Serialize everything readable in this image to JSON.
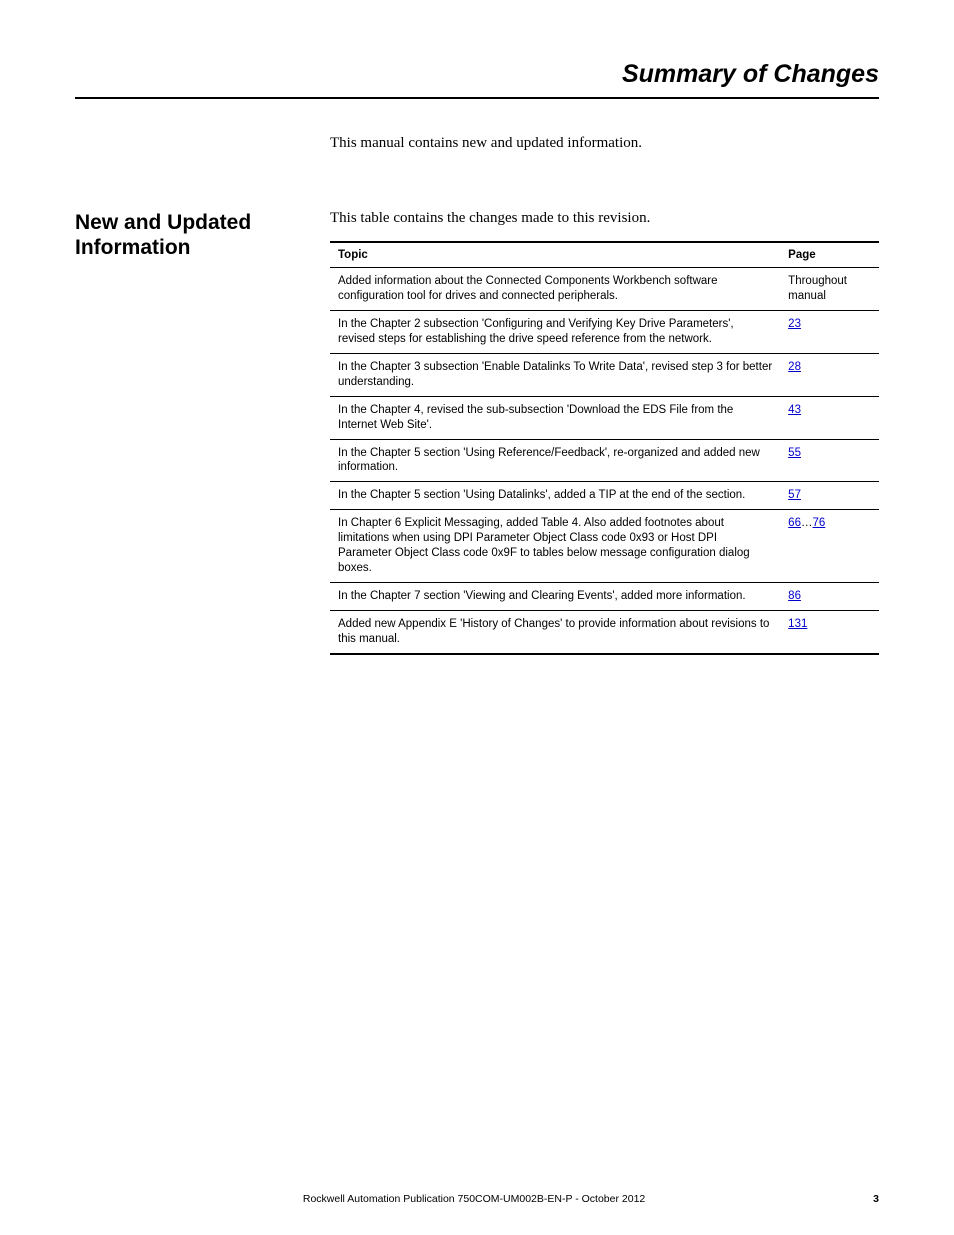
{
  "header": {
    "title": "Summary of Changes"
  },
  "intro": "This manual contains new and updated information.",
  "section": {
    "heading": "New and Updated Information",
    "lead": "This table contains the changes made to this revision."
  },
  "table": {
    "columns": {
      "topic": "Topic",
      "page": "Page"
    },
    "rows": [
      {
        "topic": "Added information about the Connected Components Workbench software configuration tool for drives and connected peripherals.",
        "page_text": "Throughout manual",
        "is_link": false
      },
      {
        "topic": "In the Chapter 2 subsection 'Configuring and Verifying Key Drive Parameters', revised steps for establishing the drive speed reference from the network.",
        "page_text": "23",
        "is_link": true
      },
      {
        "topic": "In the Chapter 3 subsection 'Enable Datalinks To Write Data', revised step 3 for better understanding.",
        "page_text": "28",
        "is_link": true
      },
      {
        "topic": "In the Chapter 4, revised the sub-subsection 'Download the EDS File from the Internet Web Site'.",
        "page_text": "43",
        "is_link": true
      },
      {
        "topic": "In the Chapter 5 section 'Using Reference/Feedback', re-organized and added new information.",
        "page_text": "55",
        "is_link": true
      },
      {
        "topic": "In the Chapter 5 section 'Using Datalinks', added a TIP at the end of the section.",
        "page_text": "57",
        "is_link": true
      },
      {
        "topic": "In Chapter 6 Explicit Messaging, added Table 4. Also added footnotes about limitations when using DPI Parameter Object Class code 0x93 or Host DPI Parameter Object Class code 0x9F to tables below message configuration dialog boxes.",
        "page_link_a": "66",
        "page_sep": "…",
        "page_link_b": "76",
        "is_range": true
      },
      {
        "topic": "In the Chapter 7 section 'Viewing and Clearing Events', added more information.",
        "page_text": "86",
        "is_link": true
      },
      {
        "topic": "Added new Appendix E 'History of Changes' to provide information about revisions to this manual.",
        "page_text": "131",
        "is_link": true
      }
    ]
  },
  "footer": {
    "publication": "Rockwell Automation Publication 750COM-UM002B-EN-P - October 2012",
    "page_number": "3"
  },
  "style": {
    "page_bg": "#ffffff",
    "text_color": "#000000",
    "link_color": "#0000cc",
    "rule_color": "#000000",
    "body_font": "Times New Roman",
    "ui_font": "Arial",
    "header_title_fontsize": 25,
    "section_heading_fontsize": 21,
    "body_fontsize": 15,
    "table_fontsize": 11.5,
    "footer_fontsize": 10.5
  }
}
